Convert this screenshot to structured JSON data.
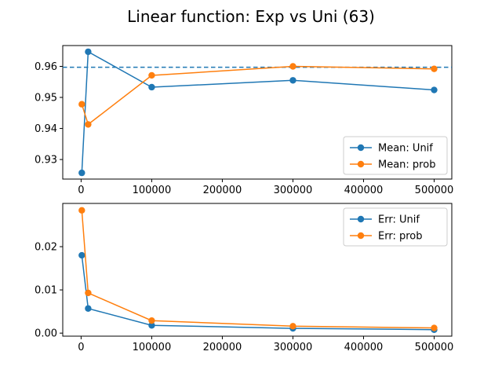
{
  "title": "Linear function: Exp vs Uni (63)",
  "colors": {
    "unif": "#1f77b4",
    "prob": "#ff7f0e",
    "axis": "#000000",
    "reference": "#1f77b4"
  },
  "chart_data": [
    {
      "type": "line",
      "name": "mean",
      "x": [
        1000,
        10000,
        100000,
        300000,
        500000
      ],
      "series": [
        {
          "name": "Mean: Unif",
          "color_key": "unif",
          "values": [
            0.9257,
            0.9647,
            0.9533,
            0.9555,
            0.9524
          ]
        },
        {
          "name": "Mean: prob",
          "color_key": "prob",
          "values": [
            0.9478,
            0.9413,
            0.9571,
            0.96,
            0.9592
          ]
        }
      ],
      "reference_line": {
        "y": 0.9597,
        "style": "dashed"
      },
      "xlim": [
        -26000,
        525000
      ],
      "ylim": [
        0.9237,
        0.9667
      ],
      "xticks": [
        0,
        100000,
        200000,
        300000,
        400000,
        500000
      ],
      "xtick_labels": [
        "0",
        "100000",
        "200000",
        "300000",
        "400000",
        "500000"
      ],
      "yticks": [
        0.93,
        0.94,
        0.95,
        0.96
      ],
      "ytick_labels": [
        "0.93",
        "0.94",
        "0.95",
        "0.96"
      ],
      "legend": "lower-right",
      "grid": false
    },
    {
      "type": "line",
      "name": "err",
      "x": [
        1000,
        10000,
        100000,
        300000,
        500000
      ],
      "series": [
        {
          "name": "Err: Unif",
          "color_key": "unif",
          "values": [
            0.018,
            0.0057,
            0.0018,
            0.0011,
            0.0008
          ]
        },
        {
          "name": "Err: prob",
          "color_key": "prob",
          "values": [
            0.0284,
            0.0093,
            0.0029,
            0.0016,
            0.0012
          ]
        }
      ],
      "xlim": [
        -26000,
        525000
      ],
      "ylim": [
        -0.0007,
        0.03
      ],
      "xticks": [
        0,
        100000,
        200000,
        300000,
        400000,
        500000
      ],
      "xtick_labels": [
        "0",
        "100000",
        "200000",
        "300000",
        "400000",
        "500000"
      ],
      "yticks": [
        0.0,
        0.01,
        0.02
      ],
      "ytick_labels": [
        "0.00",
        "0.01",
        "0.02"
      ],
      "legend": "top-right",
      "grid": false
    }
  ]
}
